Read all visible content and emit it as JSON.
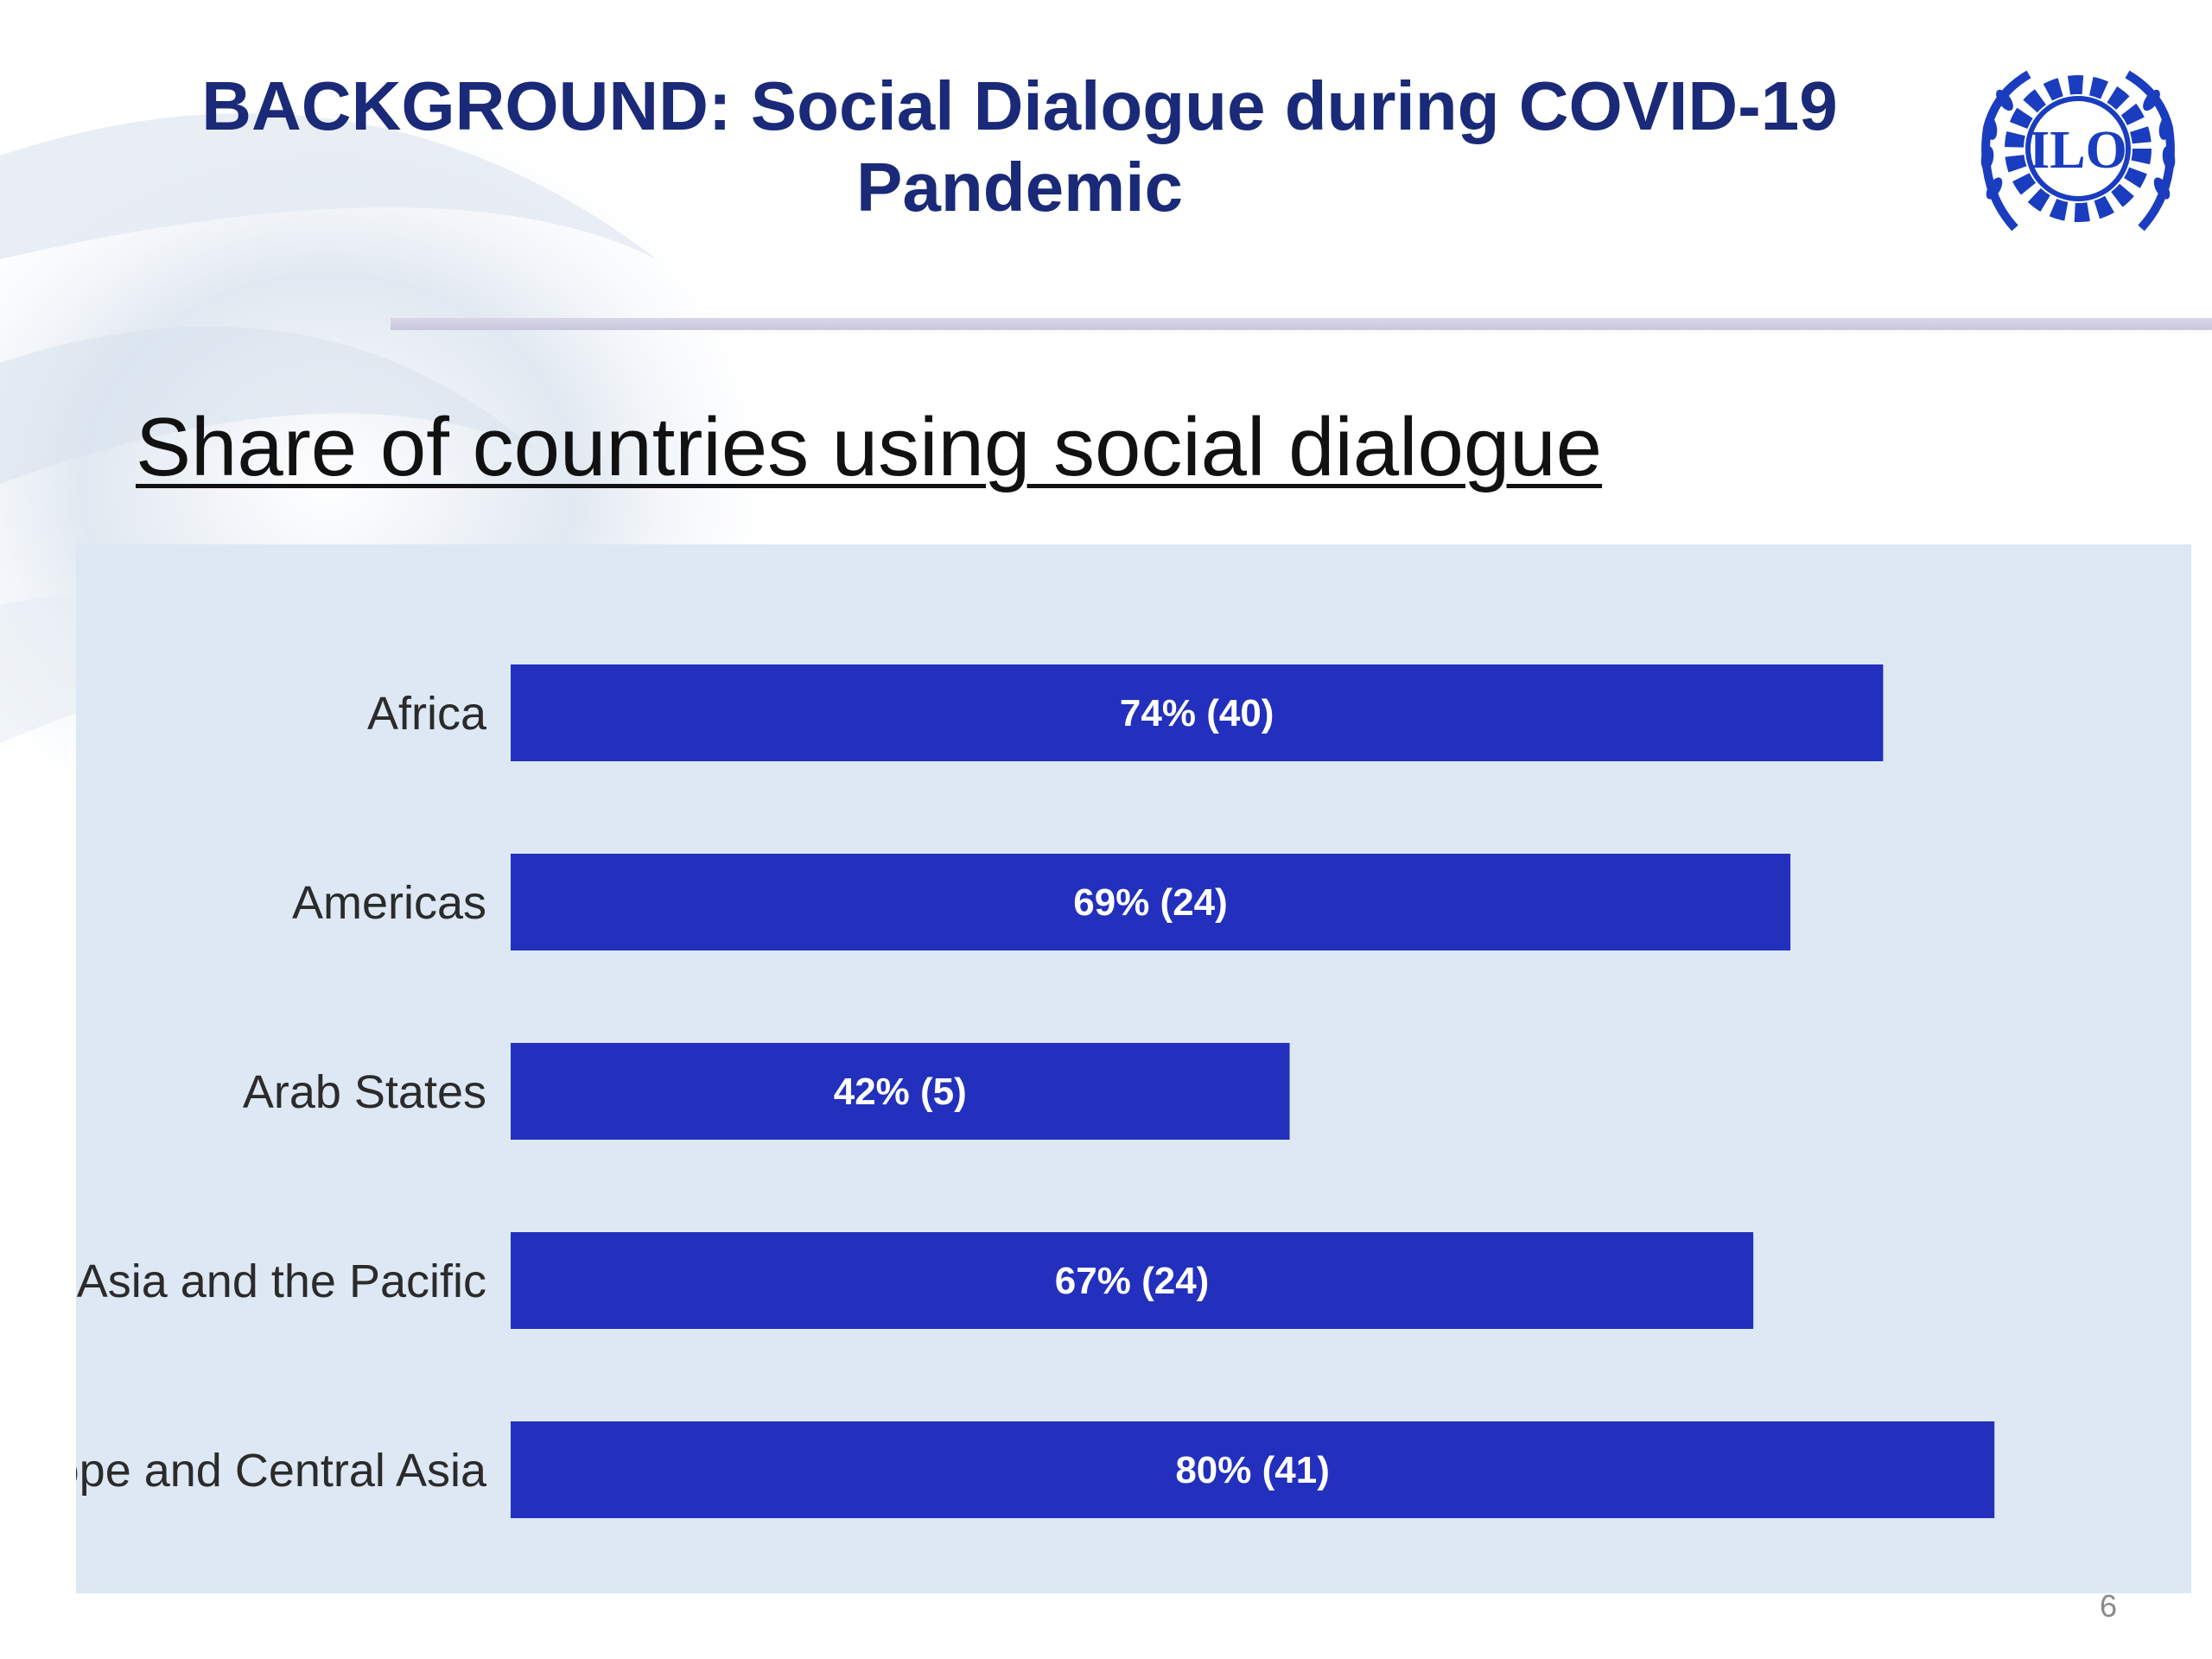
{
  "slide": {
    "title": "BACKGROUND: Social Dialogue during COVID-19 Pandemic",
    "logo_text": "ILO",
    "section_heading": "Share of countries using social dialogue",
    "page_number": "6"
  },
  "colors": {
    "title": "#1a2a78",
    "bar": "#2230bd",
    "chart_background": "#dde8f4",
    "logo": "#1a3dbf"
  },
  "icons": {
    "logo": "ilo-emblem-icon"
  },
  "chart_data": {
    "type": "bar",
    "orientation": "horizontal",
    "title": "",
    "xlabel": "",
    "ylabel": "",
    "xlim": [
      0,
      100
    ],
    "grid": false,
    "categories": [
      "Africa",
      "Americas",
      "Arab States",
      "Asia and the Pacific",
      "Europe and Central Asia"
    ],
    "values": [
      74,
      69,
      42,
      67,
      80
    ],
    "value_labels": [
      "74% (40)",
      "69% (24)",
      "42% (5)",
      "67% (24)",
      "80% (41)"
    ]
  }
}
